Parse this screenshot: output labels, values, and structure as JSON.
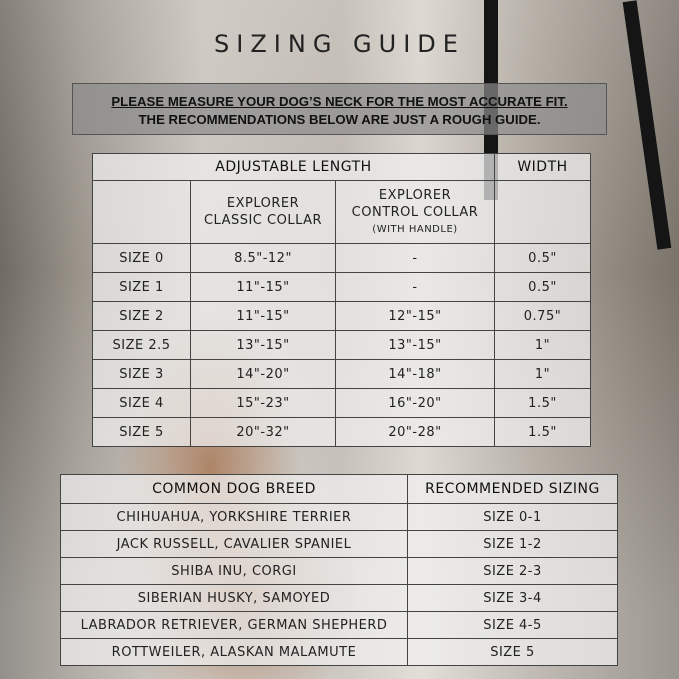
{
  "title": "SIZING GUIDE",
  "notice": {
    "line1": "PLEASE MEASURE YOUR DOG’S NECK FOR THE MOST ACCURATE FIT.",
    "line2": "THE RECOMMENDATIONS BELOW ARE JUST A ROUGH GUIDE."
  },
  "size_table": {
    "group_headers": {
      "length": "ADJUSTABLE LENGTH",
      "width": "WIDTH"
    },
    "columns": {
      "control_note": "(WITH HANDLE)",
      "classic_l1": "EXPLORER",
      "classic_l2": "CLASSIC COLLAR",
      "control_l1": "EXPLORER",
      "control_l2": "CONTROL COLLAR"
    },
    "rows": [
      [
        "SIZE 0",
        "8.5\"-12\"",
        "-",
        "0.5\""
      ],
      [
        "SIZE 1",
        "11\"-15\"",
        "-",
        "0.5\""
      ],
      [
        "SIZE 2",
        "11\"-15\"",
        "12\"-15\"",
        "0.75\""
      ],
      [
        "SIZE 2.5",
        "13\"-15\"",
        "13\"-15\"",
        "1\""
      ],
      [
        "SIZE 3",
        "14\"-20\"",
        "14\"-18\"",
        "1\""
      ],
      [
        "SIZE 4",
        "15\"-23\"",
        "16\"-20\"",
        "1.5\""
      ],
      [
        "SIZE 5",
        "20\"-32\"",
        "20\"-28\"",
        "1.5\""
      ]
    ]
  },
  "breed_table": {
    "headers": [
      "COMMON DOG BREED",
      "RECOMMENDED SIZING"
    ],
    "rows": [
      [
        "CHIHUAHUA, YORKSHIRE TERRIER",
        "SIZE 0-1"
      ],
      [
        "JACK RUSSELL, CAVALIER SPANIEL",
        "SIZE 1-2"
      ],
      [
        "SHIBA INU, CORGI",
        "SIZE 2-3"
      ],
      [
        "SIBERIAN HUSKY, SAMOYED",
        "SIZE 3-4"
      ],
      [
        "LABRADOR RETRIEVER, GERMAN SHEPHERD",
        "SIZE 4-5"
      ],
      [
        "ROTTWEILER, ALASKAN MALAMUTE",
        "SIZE 5"
      ]
    ]
  }
}
